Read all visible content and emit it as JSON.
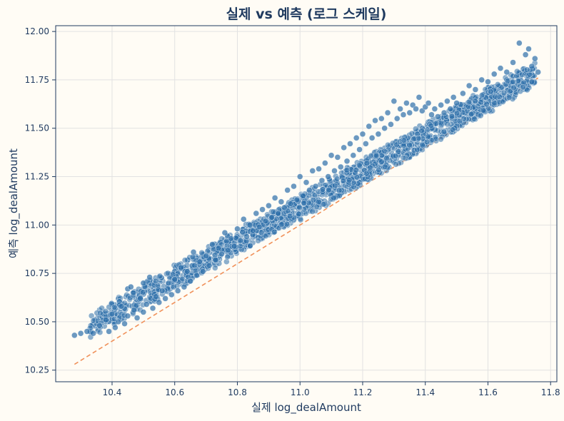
{
  "chart_data": {
    "type": "scatter",
    "title": "실제 vs 예측 (로그 스케일)",
    "xlabel": "실제 log_dealAmount",
    "ylabel": "예측 log_dealAmount",
    "xlim": [
      10.22,
      11.82
    ],
    "ylim": [
      10.19,
      12.03
    ],
    "xticks": [
      10.4,
      10.6,
      10.8,
      11.0,
      11.2,
      11.4,
      11.6,
      11.8
    ],
    "yticks": [
      10.25,
      10.5,
      10.75,
      11.0,
      11.25,
      11.5,
      11.75,
      12.0
    ],
    "xtick_labels": [
      "10.4",
      "10.6",
      "10.8",
      "11.0",
      "11.2",
      "11.4",
      "11.6",
      "11.8"
    ],
    "ytick_labels": [
      "10.25",
      "10.50",
      "10.75",
      "11.00",
      "11.25",
      "11.50",
      "11.75",
      "12.00"
    ],
    "grid": true,
    "reference_line": {
      "x": [
        10.28,
        11.76
      ],
      "y": [
        10.28,
        11.76
      ],
      "style": "dashed",
      "color": "#f0915a"
    },
    "point_color": "#2e6faa",
    "points": [
      [
        10.28,
        10.43
      ],
      [
        10.3,
        10.44
      ],
      [
        10.32,
        10.45
      ],
      [
        10.34,
        10.44
      ],
      [
        10.36,
        10.48
      ],
      [
        10.38,
        10.51
      ],
      [
        10.39,
        10.45
      ],
      [
        10.4,
        10.54
      ],
      [
        10.41,
        10.47
      ],
      [
        10.42,
        10.5
      ],
      [
        10.43,
        10.58
      ],
      [
        10.44,
        10.49
      ],
      [
        10.45,
        10.53
      ],
      [
        10.45,
        10.67
      ],
      [
        10.46,
        10.68
      ],
      [
        10.47,
        10.56
      ],
      [
        10.48,
        10.52
      ],
      [
        10.49,
        10.62
      ],
      [
        10.5,
        10.55
      ],
      [
        10.5,
        10.7
      ],
      [
        10.51,
        10.59
      ],
      [
        10.52,
        10.73
      ],
      [
        10.53,
        10.57
      ],
      [
        10.54,
        10.63
      ],
      [
        10.55,
        10.6
      ],
      [
        10.56,
        10.66
      ],
      [
        10.57,
        10.62
      ],
      [
        10.58,
        10.7
      ],
      [
        10.59,
        10.64
      ],
      [
        10.6,
        10.72
      ],
      [
        10.61,
        10.66
      ],
      [
        10.62,
        10.78
      ],
      [
        10.63,
        10.68
      ],
      [
        10.64,
        10.76
      ],
      [
        10.65,
        10.71
      ],
      [
        10.66,
        10.86
      ],
      [
        10.67,
        10.74
      ],
      [
        10.68,
        10.81
      ],
      [
        10.69,
        10.76
      ],
      [
        10.7,
        10.84
      ],
      [
        10.71,
        10.79
      ],
      [
        10.72,
        10.9
      ],
      [
        10.73,
        10.82
      ],
      [
        10.74,
        10.88
      ],
      [
        10.75,
        10.85
      ],
      [
        10.76,
        10.96
      ],
      [
        10.77,
        10.87
      ],
      [
        10.78,
        10.93
      ],
      [
        10.79,
        10.89
      ],
      [
        10.8,
        10.98
      ],
      [
        10.81,
        10.92
      ],
      [
        10.82,
        11.03
      ],
      [
        10.83,
        10.94
      ],
      [
        10.84,
        11.0
      ],
      [
        10.85,
        10.97
      ],
      [
        10.86,
        11.06
      ],
      [
        10.87,
        10.99
      ],
      [
        10.88,
        11.08
      ],
      [
        10.89,
        11.02
      ],
      [
        10.9,
        11.1
      ],
      [
        10.91,
        11.04
      ],
      [
        10.92,
        11.14
      ],
      [
        10.93,
        11.06
      ],
      [
        10.94,
        11.12
      ],
      [
        10.95,
        11.09
      ],
      [
        10.96,
        11.18
      ],
      [
        10.97,
        11.11
      ],
      [
        10.98,
        11.2
      ],
      [
        10.99,
        11.13
      ],
      [
        11.0,
        11.25
      ],
      [
        11.01,
        11.15
      ],
      [
        11.02,
        11.22
      ],
      [
        11.03,
        11.18
      ],
      [
        11.04,
        11.28
      ],
      [
        11.05,
        11.2
      ],
      [
        11.06,
        11.29
      ],
      [
        11.07,
        11.23
      ],
      [
        11.08,
        11.32
      ],
      [
        11.09,
        11.25
      ],
      [
        11.1,
        11.36
      ],
      [
        11.11,
        11.28
      ],
      [
        11.12,
        11.35
      ],
      [
        11.13,
        11.3
      ],
      [
        11.14,
        11.4
      ],
      [
        11.15,
        11.33
      ],
      [
        11.16,
        11.42
      ],
      [
        11.17,
        11.36
      ],
      [
        11.18,
        11.45
      ],
      [
        11.19,
        11.39
      ],
      [
        11.2,
        11.47
      ],
      [
        11.21,
        11.42
      ],
      [
        11.22,
        11.51
      ],
      [
        11.23,
        11.45
      ],
      [
        11.24,
        11.54
      ],
      [
        11.25,
        11.47
      ],
      [
        11.26,
        11.55
      ],
      [
        11.27,
        11.5
      ],
      [
        11.28,
        11.58
      ],
      [
        11.29,
        11.52
      ],
      [
        11.3,
        11.64
      ],
      [
        11.31,
        11.55
      ],
      [
        11.32,
        11.6
      ],
      [
        11.33,
        11.57
      ],
      [
        11.34,
        11.63
      ],
      [
        11.35,
        11.58
      ],
      [
        11.36,
        11.62
      ],
      [
        11.37,
        11.6
      ],
      [
        11.38,
        11.66
      ],
      [
        11.39,
        11.59
      ],
      [
        11.4,
        11.61
      ],
      [
        11.41,
        11.63
      ],
      [
        11.42,
        11.57
      ],
      [
        11.43,
        11.6
      ],
      [
        11.44,
        11.56
      ],
      [
        11.45,
        11.62
      ],
      [
        11.46,
        11.58
      ],
      [
        11.47,
        11.64
      ],
      [
        11.48,
        11.6
      ],
      [
        11.49,
        11.66
      ],
      [
        11.5,
        11.63
      ],
      [
        11.52,
        11.68
      ],
      [
        11.54,
        11.72
      ],
      [
        11.56,
        11.7
      ],
      [
        11.58,
        11.75
      ],
      [
        11.6,
        11.74
      ],
      [
        11.62,
        11.78
      ],
      [
        11.64,
        11.81
      ],
      [
        11.66,
        11.79
      ],
      [
        11.68,
        11.84
      ],
      [
        11.7,
        11.94
      ],
      [
        11.72,
        11.88
      ],
      [
        11.73,
        11.91
      ],
      [
        11.74,
        11.82
      ],
      [
        11.75,
        11.86
      ],
      [
        11.76,
        11.79
      ],
      [
        11.74,
        11.74
      ]
    ]
  }
}
